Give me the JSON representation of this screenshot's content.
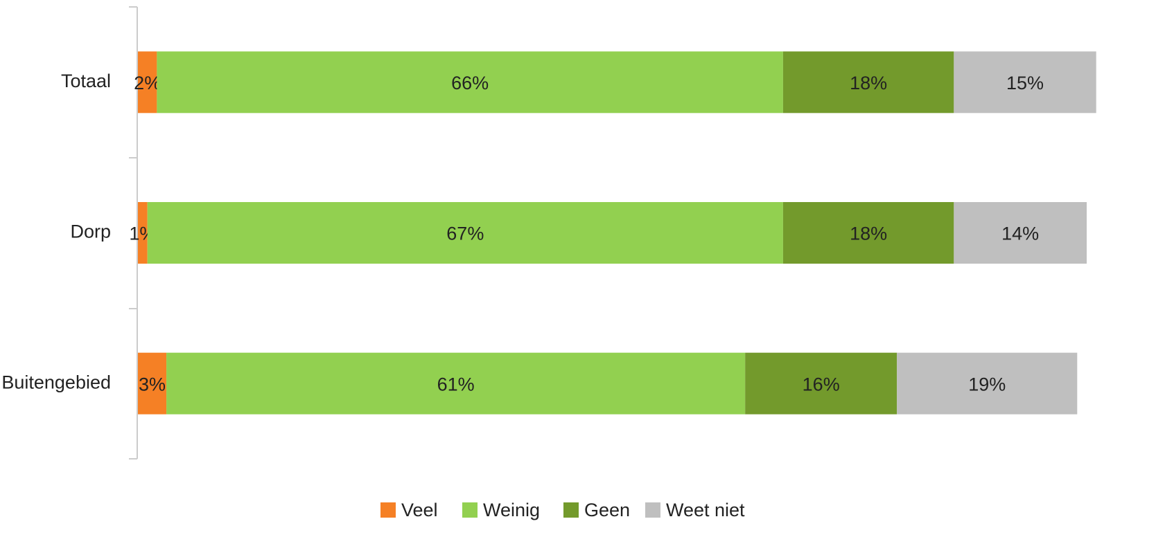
{
  "chart_data": {
    "type": "stacked_barh",
    "categories": [
      "Totaal",
      "Dorp",
      "Buitengebied"
    ],
    "series": [
      {
        "name": "Veel",
        "color": "#f58025",
        "values": [
          2,
          1,
          3
        ],
        "value_labels": [
          "2%",
          "1%",
          "3%"
        ]
      },
      {
        "name": "Weinig",
        "color": "#92d050",
        "values": [
          66,
          67,
          61
        ],
        "value_labels": [
          "66%",
          "67%",
          "61%"
        ]
      },
      {
        "name": "Geen",
        "color": "#739a2c",
        "values": [
          18,
          18,
          16
        ],
        "value_labels": [
          "18%",
          "18%",
          "16%"
        ]
      },
      {
        "name": "Weet niet",
        "color": "#bfbfbf",
        "values": [
          15,
          14,
          19
        ],
        "value_labels": [
          "15%",
          "14%",
          "19%"
        ]
      }
    ],
    "xlim": [
      0,
      100
    ],
    "legend": "bottom"
  }
}
